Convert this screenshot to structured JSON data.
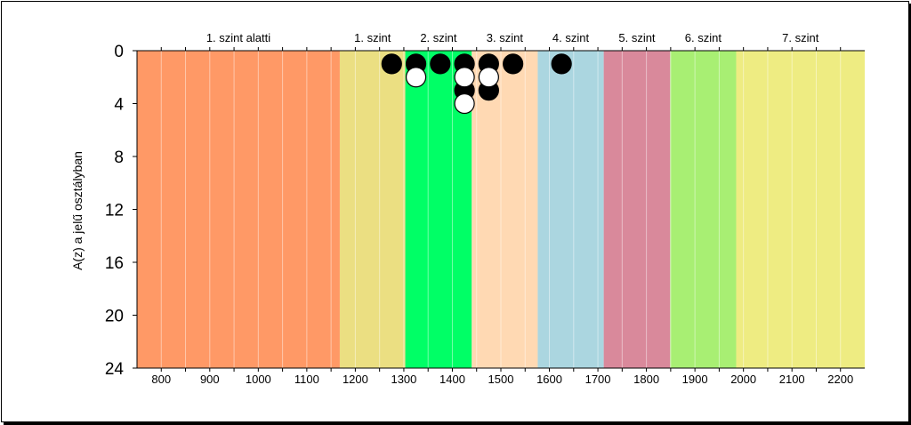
{
  "chart_data": {
    "type": "scatter",
    "title": "",
    "ylabel": "A(z) a jelű osztályban",
    "xlabel": "",
    "xlim": [
      750,
      2250
    ],
    "ylim": [
      0,
      24
    ],
    "y_inverted": true,
    "x_ticks": [
      800,
      900,
      1000,
      1100,
      1200,
      1300,
      1400,
      1500,
      1600,
      1700,
      1800,
      1900,
      2000,
      2100,
      2200
    ],
    "y_ticks": [
      0,
      4,
      8,
      12,
      16,
      20,
      24
    ],
    "grid": "vertical, every 50",
    "bands": [
      {
        "label": "1. szint alatti",
        "from": 750,
        "to": 1168,
        "color": "#FF9966"
      },
      {
        "label": "1. szint",
        "from": 1168,
        "to": 1303,
        "color": "#EBDF82"
      },
      {
        "label": "2. szint",
        "from": 1303,
        "to": 1440,
        "color": "#00FF66"
      },
      {
        "label": "3. szint",
        "from": 1440,
        "to": 1576,
        "color": "#FFD9B3"
      },
      {
        "label": "4. szint",
        "from": 1576,
        "to": 1712,
        "color": "#ABD6E0"
      },
      {
        "label": "5. szint",
        "from": 1712,
        "to": 1849,
        "color": "#D9899B"
      },
      {
        "label": "6. szint",
        "from": 1849,
        "to": 1985,
        "color": "#A8EF73"
      },
      {
        "label": "7. szint",
        "from": 1985,
        "to": 2250,
        "color": "#EEEC82"
      }
    ],
    "series": [
      {
        "marker": "black-circle",
        "color": "#000000",
        "points": [
          {
            "x": 1275,
            "y": 1
          },
          {
            "x": 1325,
            "y": 1
          },
          {
            "x": 1375,
            "y": 1
          },
          {
            "x": 1425,
            "y": 1
          },
          {
            "x": 1425,
            "y": 3
          },
          {
            "x": 1475,
            "y": 1
          },
          {
            "x": 1475,
            "y": 3
          },
          {
            "x": 1525,
            "y": 1
          },
          {
            "x": 1625,
            "y": 1
          }
        ]
      },
      {
        "marker": "white-circle",
        "color": "#ffffff",
        "points": [
          {
            "x": 1325,
            "y": 2
          },
          {
            "x": 1425,
            "y": 2
          },
          {
            "x": 1425,
            "y": 4
          },
          {
            "x": 1475,
            "y": 2
          }
        ]
      }
    ]
  }
}
